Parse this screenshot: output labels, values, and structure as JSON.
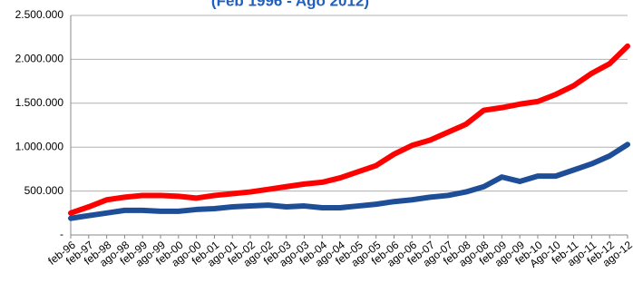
{
  "chart_data": {
    "type": "line",
    "title": "(Feb 1996 - Ago 2012)",
    "categories": [
      "feb-96",
      "feb-97",
      "feb-98",
      "ago-98",
      "feb-99",
      "ago-99",
      "feb-00",
      "ago-00",
      "feb-01",
      "ago-01",
      "feb-02",
      "ago-02",
      "feb-03",
      "ago-03",
      "feb-04",
      "ago-04",
      "feb-05",
      "ago-05",
      "feb-06",
      "ago-06",
      "feb-07",
      "ago-07",
      "feb-08",
      "ago-08",
      "feb-09",
      "ago-09",
      "feb-10",
      "Ago-10",
      "feb-11",
      "ago-11",
      "feb-12",
      "ago-12"
    ],
    "series": [
      {
        "color": "#ff0000",
        "values": [
          250000,
          320000,
          400000,
          430000,
          450000,
          450000,
          440000,
          420000,
          450000,
          470000,
          490000,
          520000,
          550000,
          580000,
          600000,
          650000,
          720000,
          790000,
          920000,
          1020000,
          1080000,
          1170000,
          1260000,
          1420000,
          1450000,
          1490000,
          1520000,
          1600000,
          1700000,
          1840000,
          1950000,
          2150000
        ]
      },
      {
        "color": "#1f4e99",
        "values": [
          190000,
          220000,
          250000,
          280000,
          280000,
          270000,
          270000,
          290000,
          300000,
          320000,
          330000,
          340000,
          320000,
          330000,
          310000,
          310000,
          330000,
          350000,
          380000,
          400000,
          430000,
          450000,
          490000,
          550000,
          660000,
          610000,
          670000,
          670000,
          740000,
          810000,
          900000,
          1030000
        ]
      }
    ],
    "ylim": [
      0,
      2500000
    ],
    "yticks": [
      {
        "value": 0,
        "label": "-"
      },
      {
        "value": 500000,
        "label": "500.000"
      },
      {
        "value": 1000000,
        "label": "1.000.000"
      },
      {
        "value": 1500000,
        "label": "1.500.000"
      },
      {
        "value": 2000000,
        "label": "2.000.000"
      },
      {
        "value": 2500000,
        "label": "2.500.000"
      }
    ],
    "grid": true
  }
}
